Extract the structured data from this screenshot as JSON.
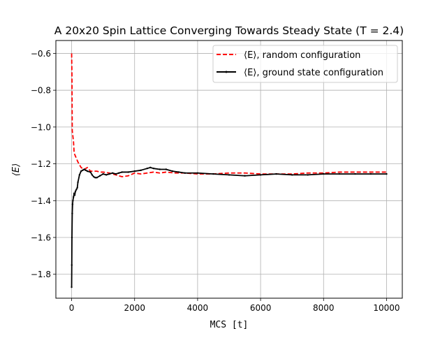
{
  "chart_data": {
    "type": "line",
    "title": "A 20x20 Spin Lattice Converging Towards Steady State (T = 2.4)",
    "xlabel": "MCS [t]",
    "ylabel": "⟨E⟩",
    "xlim": [
      -500,
      10500
    ],
    "ylim": [
      -1.93,
      -0.53
    ],
    "xticks": [
      0,
      2000,
      4000,
      6000,
      8000,
      10000
    ],
    "yticks": [
      -1.8,
      -1.6,
      -1.4,
      -1.2,
      -1.0,
      -0.8,
      -0.6
    ],
    "ytick_labels": [
      "−1.8",
      "−1.6",
      "−1.4",
      "−1.2",
      "−1.0",
      "−0.8",
      "−0.6"
    ],
    "grid": true,
    "legend_position": "top-right",
    "series": [
      {
        "name": "⟨E⟩, random configuration",
        "color": "#ff0000",
        "style": "dashed",
        "x": [
          0,
          10,
          20,
          40,
          60,
          80,
          100,
          150,
          200,
          300,
          400,
          500,
          600,
          700,
          800,
          900,
          1000,
          1200,
          1400,
          1600,
          1800,
          2000,
          2200,
          2400,
          2600,
          2800,
          3000,
          3300,
          3600,
          4000,
          4500,
          5000,
          5500,
          6000,
          6500,
          7000,
          7500,
          8000,
          8500,
          9000,
          9500,
          10000
        ],
        "y": [
          -0.6,
          -0.72,
          -1.02,
          -1.05,
          -1.08,
          -1.14,
          -1.15,
          -1.17,
          -1.19,
          -1.22,
          -1.23,
          -1.22,
          -1.24,
          -1.24,
          -1.24,
          -1.245,
          -1.245,
          -1.25,
          -1.26,
          -1.27,
          -1.265,
          -1.25,
          -1.255,
          -1.25,
          -1.245,
          -1.25,
          -1.245,
          -1.25,
          -1.25,
          -1.255,
          -1.255,
          -1.25,
          -1.25,
          -1.255,
          -1.255,
          -1.255,
          -1.25,
          -1.25,
          -1.245,
          -1.245,
          -1.245,
          -1.245
        ]
      },
      {
        "name": "⟨E⟩, ground state configuration",
        "color": "#000000",
        "style": "solid",
        "x": [
          0,
          5,
          10,
          20,
          30,
          40,
          60,
          80,
          100,
          120,
          150,
          180,
          200,
          250,
          300,
          350,
          400,
          450,
          500,
          600,
          650,
          700,
          750,
          800,
          900,
          1000,
          1100,
          1200,
          1300,
          1400,
          1500,
          1600,
          1800,
          2000,
          2200,
          2400,
          2500,
          2600,
          2800,
          3000,
          3200,
          3400,
          3600,
          4000,
          4500,
          5000,
          5500,
          6000,
          6500,
          7000,
          7500,
          8000,
          8500,
          9000,
          9500,
          10000
        ],
        "y": [
          -1.87,
          -1.75,
          -1.6,
          -1.47,
          -1.42,
          -1.4,
          -1.38,
          -1.36,
          -1.37,
          -1.35,
          -1.34,
          -1.33,
          -1.3,
          -1.26,
          -1.24,
          -1.235,
          -1.23,
          -1.235,
          -1.24,
          -1.245,
          -1.26,
          -1.27,
          -1.275,
          -1.275,
          -1.265,
          -1.255,
          -1.26,
          -1.255,
          -1.25,
          -1.255,
          -1.25,
          -1.245,
          -1.245,
          -1.24,
          -1.235,
          -1.225,
          -1.22,
          -1.225,
          -1.23,
          -1.23,
          -1.24,
          -1.245,
          -1.25,
          -1.25,
          -1.255,
          -1.26,
          -1.265,
          -1.26,
          -1.255,
          -1.26,
          -1.26,
          -1.255,
          -1.255,
          -1.255,
          -1.255,
          -1.255
        ]
      }
    ]
  }
}
